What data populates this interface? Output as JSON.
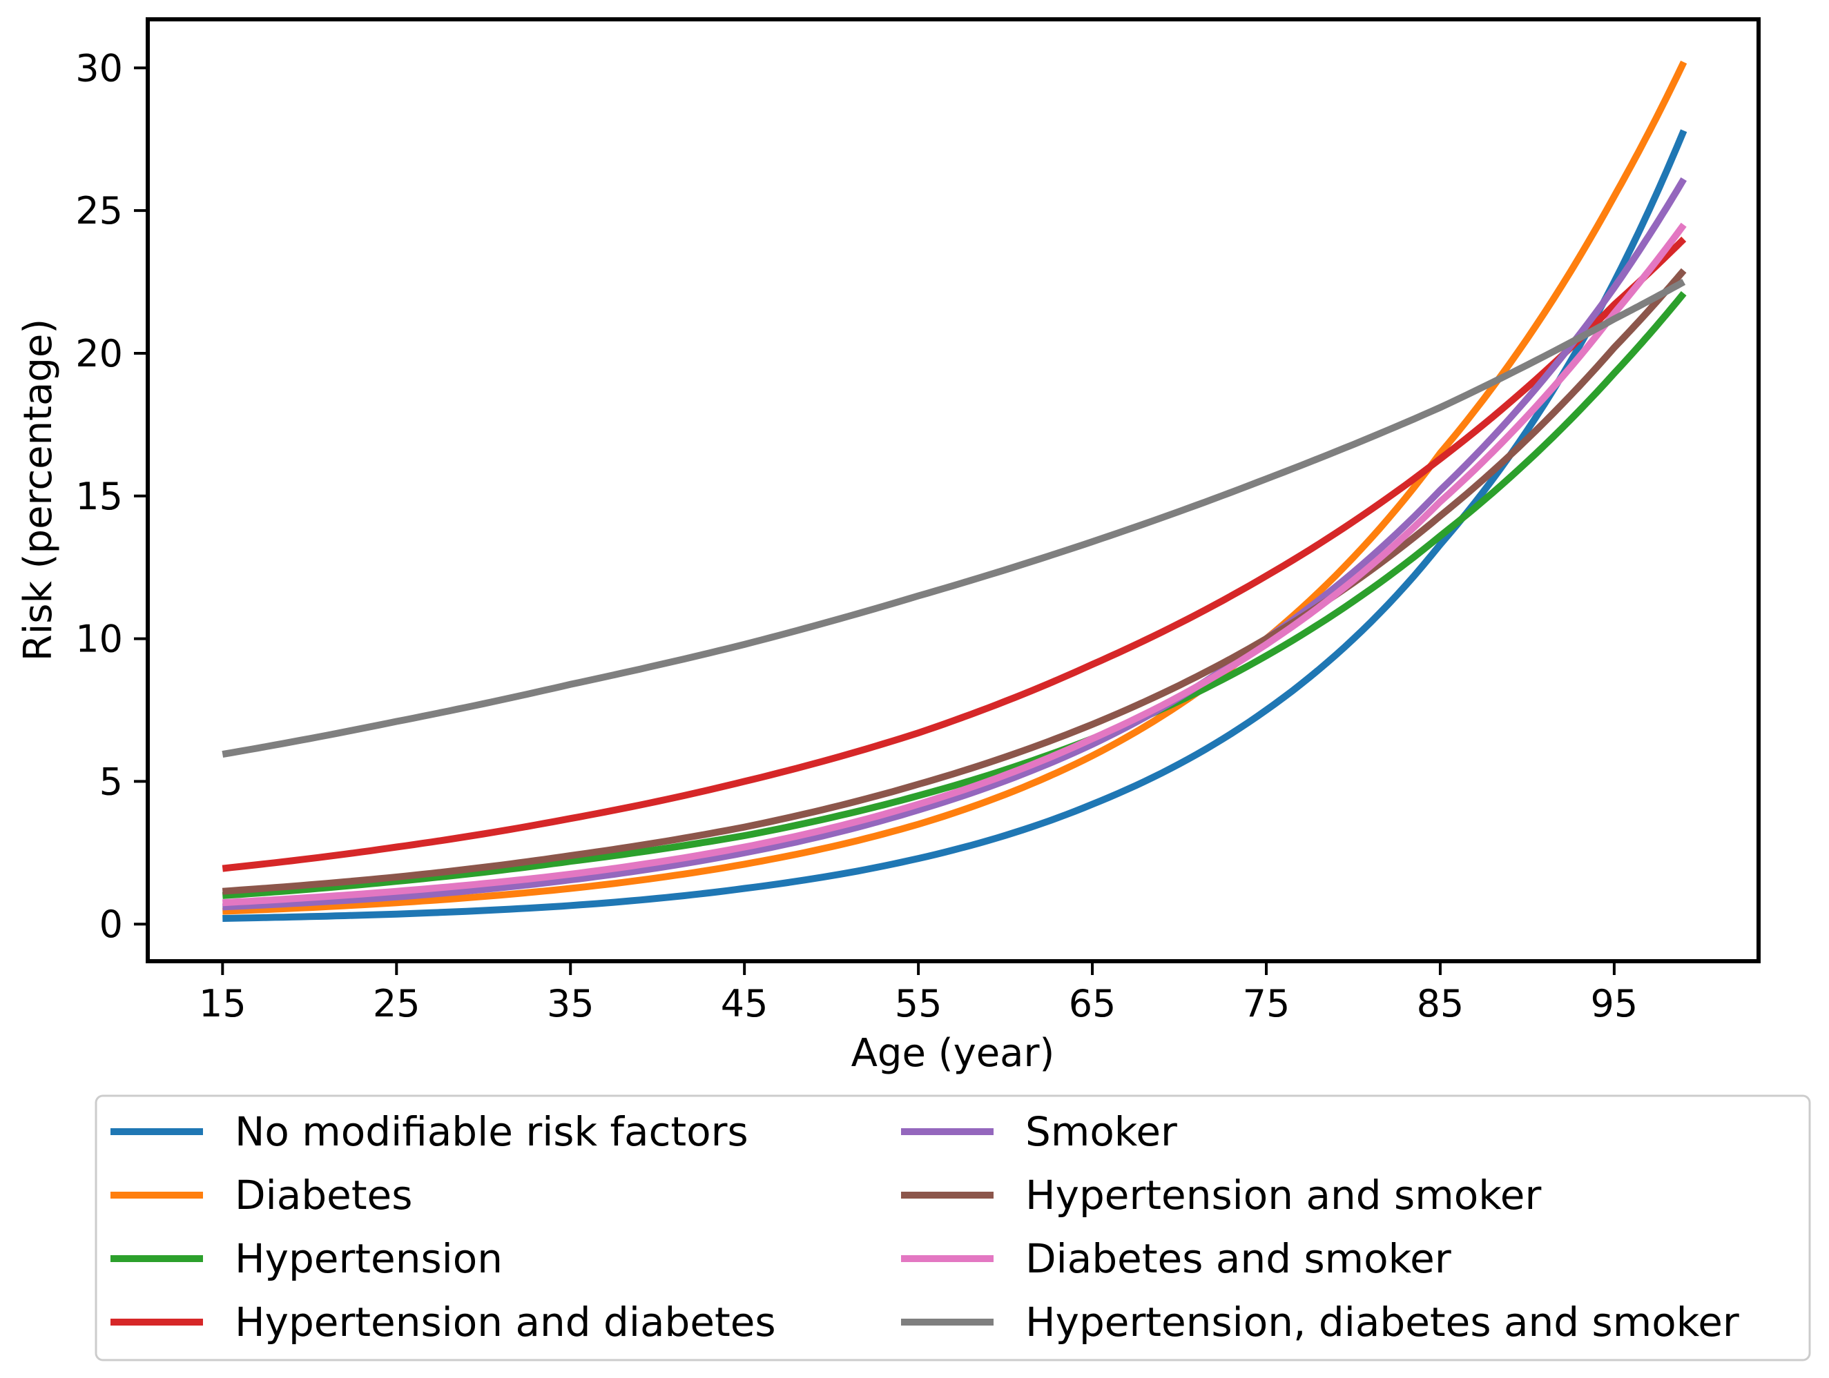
{
  "chart_data": {
    "type": "line",
    "title": "",
    "xlabel": "Age (year)",
    "ylabel": "Risk (percentage)",
    "xlim": [
      10.7,
      103.3
    ],
    "ylim": [
      -1.3,
      31.7
    ],
    "xticks": [
      15,
      25,
      35,
      45,
      55,
      65,
      75,
      85,
      95
    ],
    "yticks": [
      0,
      5,
      10,
      15,
      20,
      25,
      30
    ],
    "grid": false,
    "legend_position": "below plot, two columns",
    "x": [
      15,
      25,
      35,
      45,
      55,
      65,
      75,
      85,
      95,
      99
    ],
    "series": [
      {
        "name": "No modifiable risk factors",
        "color": "#1f77b4",
        "values": [
          0.2,
          0.35,
          0.65,
          1.25,
          2.3,
          4.2,
          7.5,
          13.3,
          22.5,
          27.8
        ]
      },
      {
        "name": "Diabetes",
        "color": "#ff7f0e",
        "values": [
          0.45,
          0.75,
          1.25,
          2.1,
          3.5,
          5.9,
          10.0,
          16.5,
          25.5,
          30.2
        ]
      },
      {
        "name": "Hypertension",
        "color": "#2ca02c",
        "values": [
          1.0,
          1.5,
          2.2,
          3.1,
          4.5,
          6.5,
          9.4,
          13.6,
          19.3,
          22.1
        ]
      },
      {
        "name": "Hypertension and diabetes",
        "color": "#d62728",
        "values": [
          1.95,
          2.7,
          3.7,
          5.0,
          6.7,
          9.1,
          12.2,
          16.3,
          21.7,
          24.0
        ]
      },
      {
        "name": "Smoker",
        "color": "#9467bd",
        "values": [
          0.6,
          0.95,
          1.55,
          2.5,
          4.0,
          6.3,
          10.0,
          15.2,
          22.3,
          26.1
        ]
      },
      {
        "name": "Hypertension and smoker",
        "color": "#8c564b",
        "values": [
          1.15,
          1.65,
          2.4,
          3.4,
          4.9,
          7.0,
          10.0,
          14.3,
          20.2,
          22.9
        ]
      },
      {
        "name": "Diabetes and smoker",
        "color": "#e377c2",
        "values": [
          0.75,
          1.15,
          1.75,
          2.7,
          4.2,
          6.5,
          9.8,
          14.8,
          21.4,
          24.5
        ]
      },
      {
        "name": "Hypertension, diabetes and smoker",
        "color": "#7f7f7f",
        "values": [
          5.95,
          7.1,
          8.4,
          9.8,
          11.5,
          13.4,
          15.6,
          18.1,
          21.2,
          22.5
        ]
      }
    ]
  }
}
